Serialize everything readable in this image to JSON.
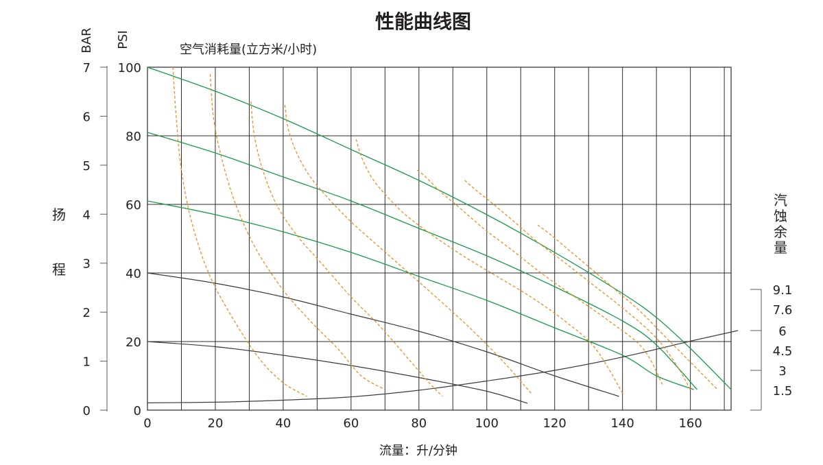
{
  "chart_data": {
    "type": "line",
    "title": "性能曲线图",
    "xlabel": "流量：升/分钟",
    "xlim": [
      0,
      172
    ],
    "xticks": [
      "0",
      "20",
      "40",
      "60",
      "80",
      "100",
      "120",
      "140",
      "160"
    ],
    "left_axis_bar": {
      "unit": "BAR",
      "ticks": [
        "0",
        "1",
        "2",
        "3",
        "4",
        "5",
        "6",
        "7"
      ],
      "label": "扬程"
    },
    "left_axis_psi": {
      "unit": "PSI",
      "ticks": [
        "0",
        "20",
        "40",
        "60",
        "80",
        "100"
      ],
      "ylim": [
        0,
        100
      ]
    },
    "right_axis_npsh": {
      "label": "汽蚀余量",
      "ticks": [
        "9.1",
        "7.6",
        "6",
        "4.5",
        "3",
        "1.5"
      ],
      "ylim": [
        0,
        9.1
      ]
    },
    "air_consumption_label": "空气消耗量(立方米/小时)",
    "grid": true,
    "colors": {
      "performance": "#1a9a4a",
      "low_pressure": "#3a3a3a",
      "air": "#e8901f",
      "npsh": "#3a3a3a"
    },
    "series": [
      {
        "kind": "performance",
        "x": [
          0,
          20,
          40,
          60,
          80,
          100,
          120,
          140,
          150,
          160,
          172
        ],
        "y": [
          100,
          93,
          85,
          76,
          67,
          57,
          46,
          34,
          27,
          18,
          6
        ]
      },
      {
        "kind": "performance",
        "x": [
          0,
          20,
          40,
          60,
          80,
          100,
          120,
          140,
          150,
          162
        ],
        "y": [
          81,
          75,
          68,
          61,
          53,
          45,
          36,
          26,
          19,
          6
        ]
      },
      {
        "kind": "performance",
        "x": [
          0,
          20,
          40,
          60,
          80,
          100,
          120,
          140,
          150,
          161
        ],
        "y": [
          61,
          57,
          52,
          46,
          39,
          32,
          24,
          16,
          10,
          6
        ]
      },
      {
        "kind": "low_pressure",
        "x": [
          0,
          20,
          40,
          60,
          80,
          100,
          120,
          139
        ],
        "y": [
          40,
          37,
          33,
          28,
          23,
          17,
          10,
          4
        ]
      },
      {
        "kind": "low_pressure",
        "x": [
          0,
          20,
          40,
          60,
          80,
          100,
          112
        ],
        "y": [
          20,
          18.5,
          16,
          13,
          9.5,
          5.5,
          2
        ]
      },
      {
        "kind": "npsh",
        "x": [
          0,
          20,
          40,
          60,
          80,
          100,
          120,
          140,
          160,
          174
        ],
        "y": [
          0.55,
          0.6,
          0.75,
          1.0,
          1.5,
          2.2,
          3.0,
          4.0,
          5.2,
          6.0
        ]
      },
      {
        "kind": "air",
        "x": [
          7.5,
          8.5,
          10,
          13,
          18,
          25,
          33,
          40,
          47
        ],
        "y": [
          100,
          85,
          70,
          55,
          40,
          27,
          15,
          8,
          4
        ]
      },
      {
        "kind": "air",
        "x": [
          18.5,
          19.5,
          22,
          26,
          32,
          40,
          48,
          56,
          63,
          70
        ],
        "y": [
          98,
          85,
          73,
          60,
          47,
          35,
          26,
          18,
          10,
          6
        ]
      },
      {
        "kind": "air",
        "x": [
          30.5,
          31.5,
          34,
          38,
          44,
          52,
          60,
          68,
          76,
          83,
          87
        ],
        "y": [
          90,
          80,
          70,
          60,
          51,
          42,
          33,
          25,
          16,
          8,
          4
        ]
      },
      {
        "kind": "air",
        "x": [
          40.5,
          41.5,
          44,
          48,
          54,
          61,
          69,
          77,
          85,
          95,
          105,
          113
        ],
        "y": [
          89,
          82,
          75,
          68,
          61,
          54,
          47,
          40,
          33,
          24,
          14,
          5
        ]
      },
      {
        "kind": "air",
        "x": [
          61.5,
          63,
          66,
          70,
          76,
          84,
          93,
          103,
          113,
          123,
          132,
          140
        ],
        "y": [
          79,
          74,
          68,
          63,
          57,
          51,
          45,
          39,
          33,
          26,
          18,
          5
        ]
      },
      {
        "kind": "air",
        "x": [
          79.5,
          82,
          86,
          92,
          99,
          107,
          116,
          126,
          136,
          146,
          152
        ],
        "y": [
          70,
          68,
          64,
          59,
          53,
          47,
          40,
          33,
          26,
          18,
          7
        ]
      },
      {
        "kind": "air",
        "x": [
          93.5,
          97,
          102,
          108,
          115,
          123,
          132,
          141,
          150,
          156,
          160
        ],
        "y": [
          67,
          64,
          60,
          55,
          49,
          43,
          36,
          29,
          21,
          13,
          6
        ]
      },
      {
        "kind": "air",
        "x": [
          115,
          119,
          125,
          131,
          138,
          145,
          152,
          158,
          163,
          168
        ],
        "y": [
          54,
          51,
          46,
          41,
          35,
          29,
          22,
          16,
          11,
          6
        ]
      }
    ]
  }
}
